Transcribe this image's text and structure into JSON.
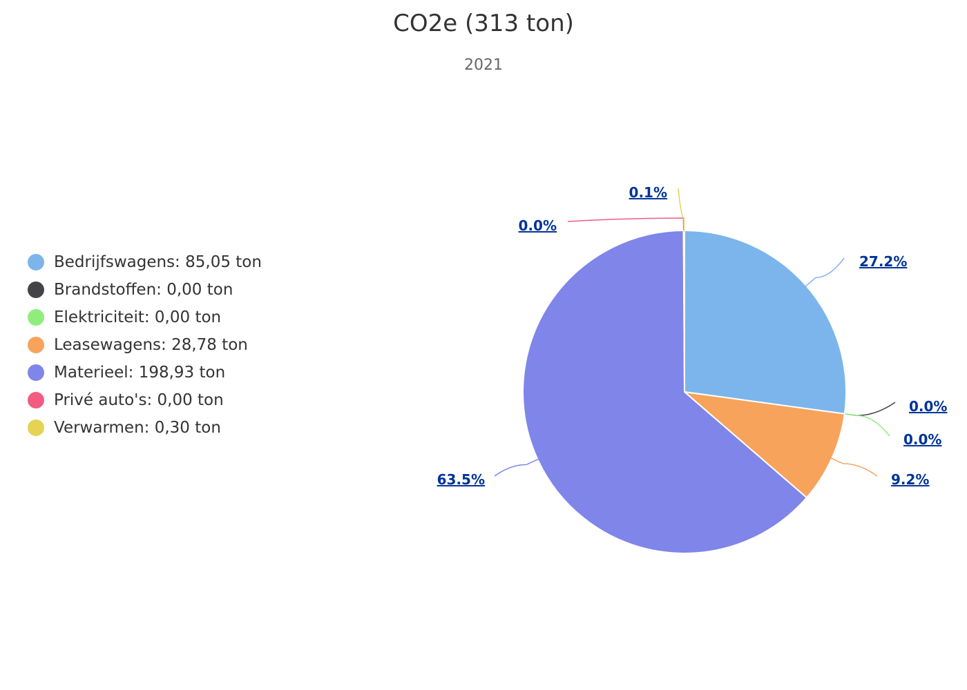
{
  "chart_data": {
    "type": "pie",
    "title": "CO2e (313 ton)",
    "subtitle": "2021",
    "legend_position": "left",
    "slices": [
      {
        "name": "Bedrijfswagens",
        "legend_label": "Bedrijfswagens: 85,05 ton",
        "value": 85.05,
        "percent_label": "27.2%",
        "color": "#7cb5ec"
      },
      {
        "name": "Brandstoffen",
        "legend_label": "Brandstoffen: 0,00 ton",
        "value": 0.0,
        "percent_label": "0.0%",
        "color": "#434348"
      },
      {
        "name": "Elektriciteit",
        "legend_label": "Elektriciteit: 0,00 ton",
        "value": 0.0,
        "percent_label": "0.0%",
        "color": "#90ed7d"
      },
      {
        "name": "Leasewagens",
        "legend_label": "Leasewagens: 28,78 ton",
        "value": 28.78,
        "percent_label": "9.2%",
        "color": "#f7a35c"
      },
      {
        "name": "Materieel",
        "legend_label": "Materieel: 198,93 ton",
        "value": 198.93,
        "percent_label": "63.5%",
        "color": "#8085e9"
      },
      {
        "name": "Privé auto's",
        "legend_label": "Privé auto's: 0,00 ton",
        "value": 0.0,
        "percent_label": "0.0%",
        "color": "#f15c80"
      },
      {
        "name": "Verwarmen",
        "legend_label": "Verwarmen: 0,30 ton",
        "value": 0.3,
        "percent_label": "0.1%",
        "color": "#e4d354"
      }
    ]
  }
}
